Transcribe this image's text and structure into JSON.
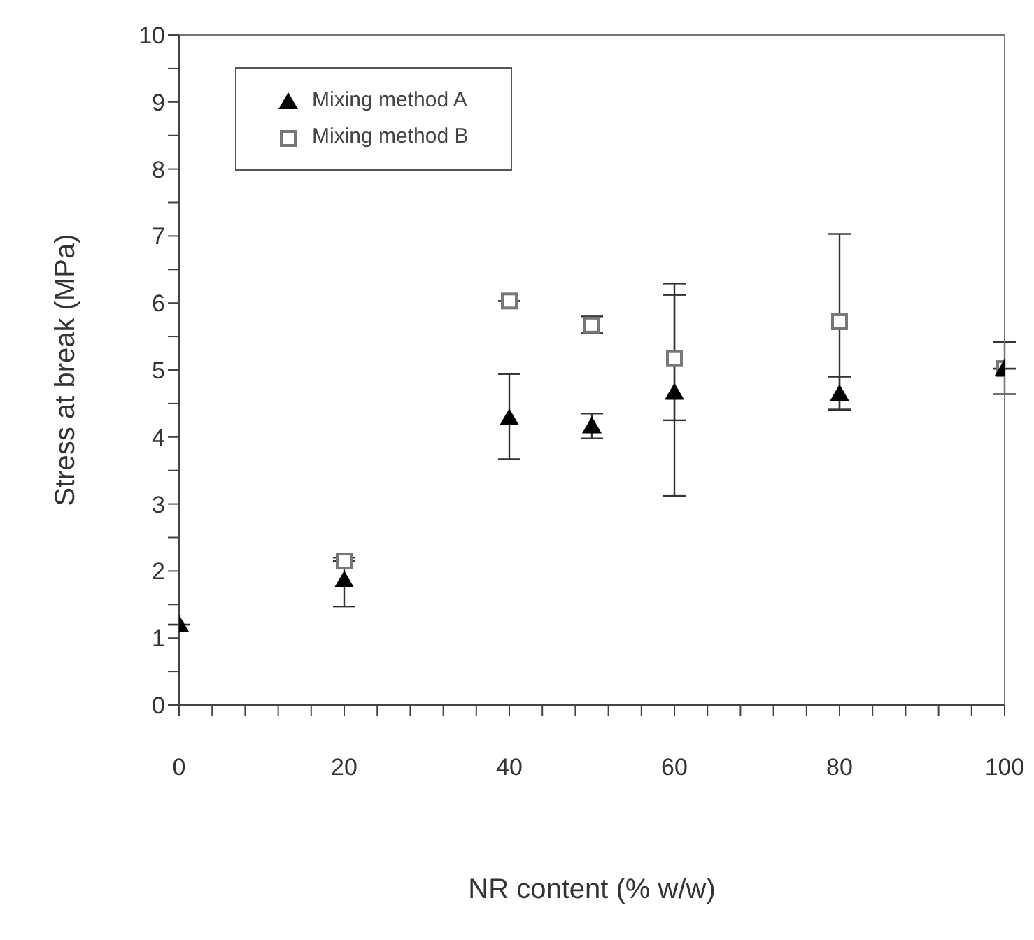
{
  "chart_data": {
    "type": "scatter",
    "xlabel": "NR content (% w/w)",
    "ylabel": "Stress at break (MPa)",
    "x": [
      0,
      20,
      40,
      50,
      60,
      80,
      100
    ],
    "series": [
      {
        "name": "Mixing method A",
        "color": "#000000",
        "marker": "triangle",
        "values": [
          1.2,
          1.86,
          4.28,
          4.16,
          4.66,
          4.64,
          5.02
        ],
        "errors": [
          null,
          [
            1.47,
            2.2
          ],
          [
            3.67,
            4.94
          ],
          [
            3.98,
            4.35
          ],
          [
            4.25,
            6.12
          ],
          [
            4.41,
            4.9
          ],
          [
            4.64,
            5.42
          ]
        ]
      },
      {
        "name": "Mixing method B",
        "color": "#777777",
        "marker": "square",
        "values": [
          null,
          2.15,
          6.03,
          5.67,
          5.17,
          5.72,
          5.02
        ],
        "errors": [
          null,
          null,
          null,
          [
            5.55,
            5.8
          ],
          [
            3.12,
            6.29
          ],
          [
            4.4,
            7.03
          ],
          null
        ]
      }
    ],
    "xlim": [
      0,
      100
    ],
    "ylim": [
      0,
      10
    ],
    "xticks": [
      0,
      {
        "value": 4,
        "label": null
      },
      {
        "value": 8,
        "label": null
      },
      {
        "value": 12,
        "label": null
      },
      {
        "value": 16,
        "label": null
      },
      20,
      {
        "value": 24,
        "label": null
      },
      {
        "value": 28,
        "label": null
      },
      {
        "value": 32,
        "label": null
      },
      {
        "value": 36,
        "label": null
      },
      40,
      {
        "value": 44,
        "label": null
      },
      {
        "value": 48,
        "label": null
      },
      {
        "value": 52,
        "label": null
      },
      {
        "value": 56,
        "label": null
      },
      60,
      {
        "value": 64,
        "label": null
      },
      {
        "value": 68,
        "label": null
      },
      {
        "value": 72,
        "label": null
      },
      {
        "value": 76,
        "label": null
      },
      80,
      {
        "value": 84,
        "label": null
      },
      {
        "value": 88,
        "label": null
      },
      {
        "value": 92,
        "label": null
      },
      {
        "value": 96,
        "label": null
      },
      100
    ],
    "yticks": [
      0,
      {
        "value": 0.5,
        "label": null
      },
      1,
      {
        "value": 1.5,
        "label": null
      },
      2,
      {
        "value": 2.5,
        "label": null
      },
      3,
      {
        "value": 3.5,
        "label": null
      },
      4,
      {
        "value": 4.5,
        "label": null
      },
      5,
      {
        "value": 5.5,
        "label": null
      },
      6,
      {
        "value": 6.5,
        "label": null
      },
      7,
      {
        "value": 7.5,
        "label": null
      },
      8,
      {
        "value": 8.5,
        "label": null
      },
      9,
      {
        "value": 9.5,
        "label": null
      },
      10
    ],
    "grid": false,
    "legend": "top left"
  }
}
